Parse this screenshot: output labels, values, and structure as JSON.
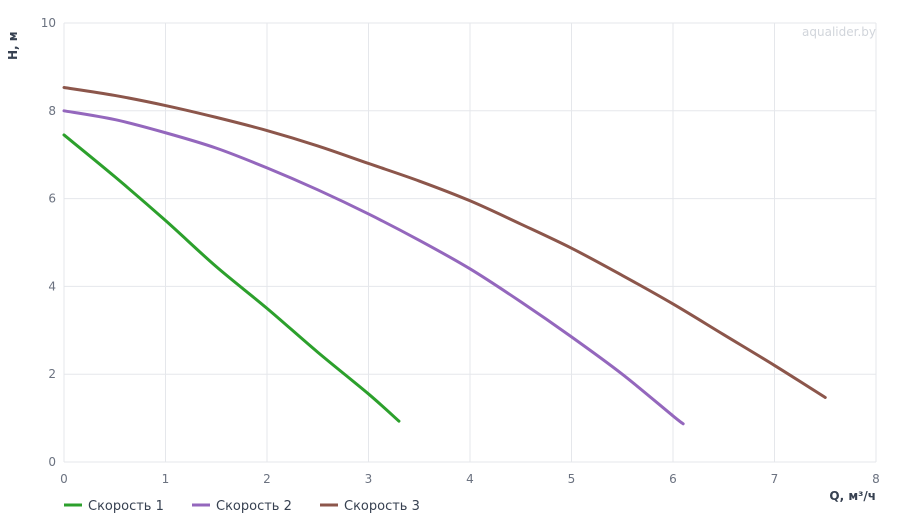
{
  "watermark": "aqualider.by",
  "chart_data": {
    "type": "line",
    "xlabel": "Q, м³/ч",
    "ylabel": "H, м",
    "xlim": [
      0,
      8
    ],
    "ylim": [
      0,
      10
    ],
    "x_ticks": [
      "0",
      "1",
      "2",
      "3",
      "4",
      "5",
      "6",
      "7",
      "8"
    ],
    "y_ticks": [
      "0",
      "2",
      "4",
      "6",
      "8",
      "10"
    ],
    "grid": true,
    "legend_position": "bottom-left",
    "series": [
      {
        "name": "Скорость 1",
        "color": "#2ca02c",
        "points": [
          [
            0,
            7.45
          ],
          [
            0.5,
            6.5
          ],
          [
            1.0,
            5.5
          ],
          [
            1.5,
            4.45
          ],
          [
            2.0,
            3.5
          ],
          [
            2.5,
            2.5
          ],
          [
            3.0,
            1.55
          ],
          [
            3.3,
            0.93
          ]
        ]
      },
      {
        "name": "Скорость 2",
        "color": "#9467bd",
        "points": [
          [
            0,
            8.0
          ],
          [
            0.5,
            7.8
          ],
          [
            1.0,
            7.5
          ],
          [
            1.5,
            7.15
          ],
          [
            2.0,
            6.7
          ],
          [
            2.5,
            6.2
          ],
          [
            3.0,
            5.65
          ],
          [
            3.5,
            5.05
          ],
          [
            4.0,
            4.4
          ],
          [
            4.5,
            3.65
          ],
          [
            5.0,
            2.85
          ],
          [
            5.5,
            2.0
          ],
          [
            6.0,
            1.05
          ],
          [
            6.1,
            0.87
          ]
        ]
      },
      {
        "name": "Скорость 3",
        "color": "#8c564b",
        "points": [
          [
            0,
            8.53
          ],
          [
            0.5,
            8.35
          ],
          [
            1.0,
            8.12
          ],
          [
            1.5,
            7.85
          ],
          [
            2.0,
            7.55
          ],
          [
            2.5,
            7.2
          ],
          [
            3.0,
            6.8
          ],
          [
            3.5,
            6.4
          ],
          [
            4.0,
            5.95
          ],
          [
            4.5,
            5.42
          ],
          [
            5.0,
            4.87
          ],
          [
            5.5,
            4.25
          ],
          [
            6.0,
            3.6
          ],
          [
            6.5,
            2.9
          ],
          [
            7.0,
            2.2
          ],
          [
            7.5,
            1.47
          ]
        ]
      }
    ]
  }
}
